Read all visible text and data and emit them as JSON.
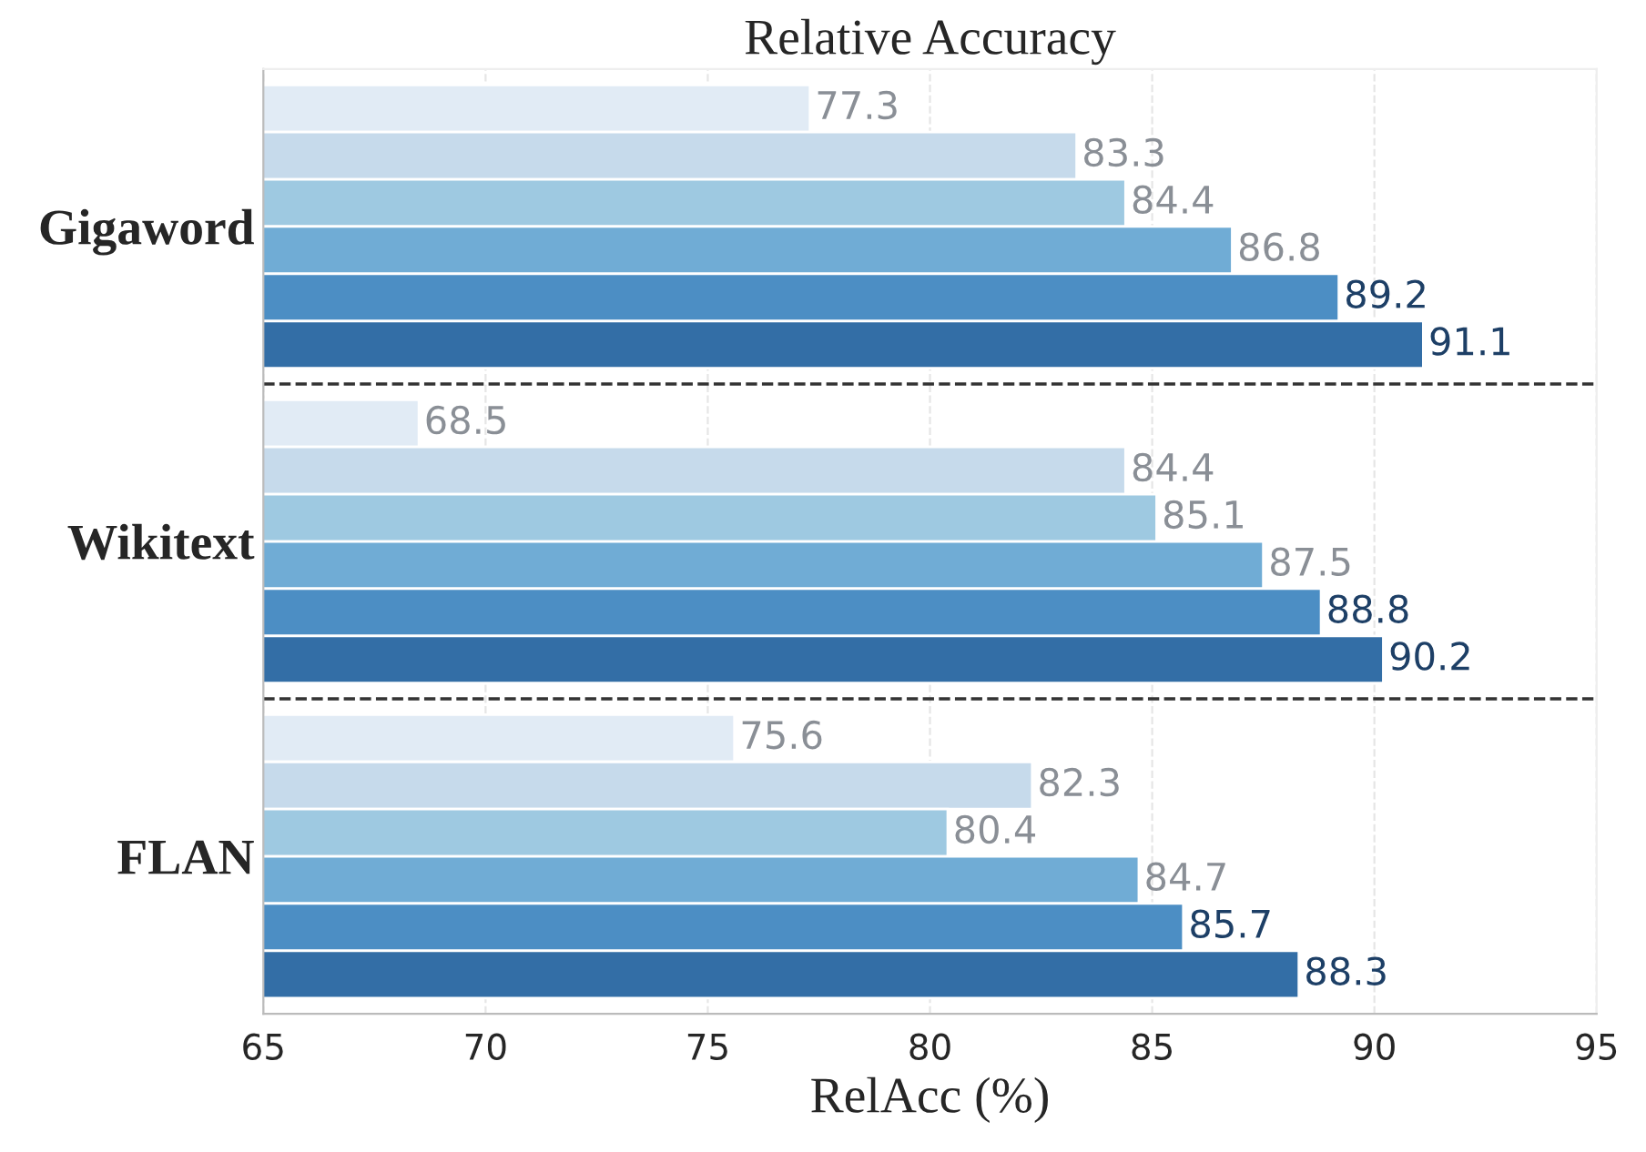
{
  "chart_data": {
    "type": "bar",
    "orientation": "horizontal",
    "title": "Relative Accuracy",
    "xlabel": "RelAcc (%)",
    "categories": [
      "Gigaword",
      "Wikitext",
      "FLAN"
    ],
    "series": [
      {
        "color": "#e1ebf5",
        "values": [
          77.3,
          68.5,
          75.6
        ]
      },
      {
        "color": "#c6daeb",
        "values": [
          83.3,
          84.4,
          82.3
        ]
      },
      {
        "color": "#9ec9e1",
        "values": [
          84.4,
          85.1,
          80.4
        ]
      },
      {
        "color": "#70acd5",
        "values": [
          86.8,
          87.5,
          84.7
        ]
      },
      {
        "color": "#4c8ec4",
        "values": [
          89.2,
          88.8,
          85.7
        ]
      },
      {
        "color": "#336ea6",
        "values": [
          91.1,
          90.2,
          88.3
        ]
      }
    ],
    "xlim": [
      65,
      95
    ],
    "xticks": [
      65,
      70,
      75,
      80,
      85,
      90,
      95
    ],
    "grid": "x",
    "data_labels": true
  }
}
